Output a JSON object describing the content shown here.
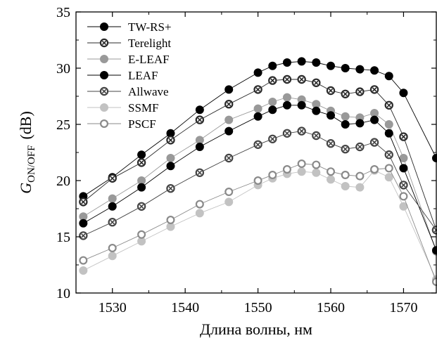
{
  "chart_data": {
    "type": "line",
    "xlabel": "Длина волны, нм",
    "ylabel_main": "G",
    "ylabel_sub": "ON/OFF",
    "ylabel_unit": "(dB)",
    "xlim": [
      1525,
      1574.5
    ],
    "ylim": [
      10,
      35
    ],
    "xticks": [
      1530,
      1540,
      1550,
      1560,
      1570
    ],
    "yticks": [
      10,
      15,
      20,
      25,
      30,
      35
    ],
    "grid": false,
    "legend_position": "top-left",
    "x": [
      1526,
      1530,
      1534,
      1538,
      1542,
      1546,
      1550,
      1552,
      1554,
      1556,
      1558,
      1560,
      1562,
      1564,
      1566,
      1568,
      1570,
      1574.5
    ],
    "series": [
      {
        "name": "TW-RS+",
        "marker": "filled",
        "color": "#000000",
        "values": [
          18.6,
          20.3,
          22.3,
          24.2,
          26.3,
          28.1,
          29.6,
          30.2,
          30.5,
          30.6,
          30.5,
          30.2,
          30.0,
          29.9,
          29.8,
          29.3,
          27.8,
          22.0
        ]
      },
      {
        "name": "Terelight",
        "marker": "hatched",
        "color": "#2a2a2a",
        "values": [
          18.1,
          20.2,
          21.6,
          23.6,
          25.4,
          26.8,
          28.1,
          28.9,
          29.0,
          29.0,
          28.7,
          28.0,
          27.7,
          27.9,
          28.1,
          26.7,
          23.9,
          15.6
        ]
      },
      {
        "name": "E-LEAF",
        "marker": "filled",
        "color": "#999999",
        "values": [
          16.8,
          18.4,
          20.0,
          22.0,
          23.6,
          25.4,
          26.4,
          27.0,
          27.4,
          27.2,
          26.8,
          26.2,
          25.7,
          25.6,
          26.0,
          25.0,
          22.0,
          13.7
        ]
      },
      {
        "name": "LEAF",
        "marker": "filled",
        "color": "#000000",
        "values": [
          16.2,
          17.7,
          19.4,
          21.3,
          23.0,
          24.4,
          25.7,
          26.3,
          26.7,
          26.7,
          26.2,
          25.8,
          25.0,
          25.1,
          25.4,
          24.2,
          21.1,
          13.8
        ]
      },
      {
        "name": "Allwave",
        "marker": "hatched",
        "color": "#444444",
        "values": [
          15.1,
          16.3,
          17.7,
          19.3,
          20.7,
          22.0,
          23.2,
          23.7,
          24.2,
          24.4,
          24.0,
          23.3,
          22.8,
          23.0,
          23.4,
          22.3,
          19.6,
          15.6
        ]
      },
      {
        "name": "SSMF",
        "marker": "filled",
        "color": "#c2c2c2",
        "values": [
          12.0,
          13.3,
          14.6,
          15.9,
          17.1,
          18.1,
          19.6,
          20.2,
          20.6,
          20.8,
          20.7,
          20.1,
          19.5,
          19.4,
          20.9,
          20.3,
          17.7,
          11.2
        ]
      },
      {
        "name": "PSCF",
        "marker": "hollow",
        "color": "#8a8a8a",
        "values": [
          12.9,
          14.0,
          15.2,
          16.5,
          17.9,
          19.0,
          20.0,
          20.5,
          21.0,
          21.5,
          21.4,
          20.8,
          20.5,
          20.4,
          21.0,
          21.1,
          18.6,
          11.0
        ]
      }
    ]
  }
}
